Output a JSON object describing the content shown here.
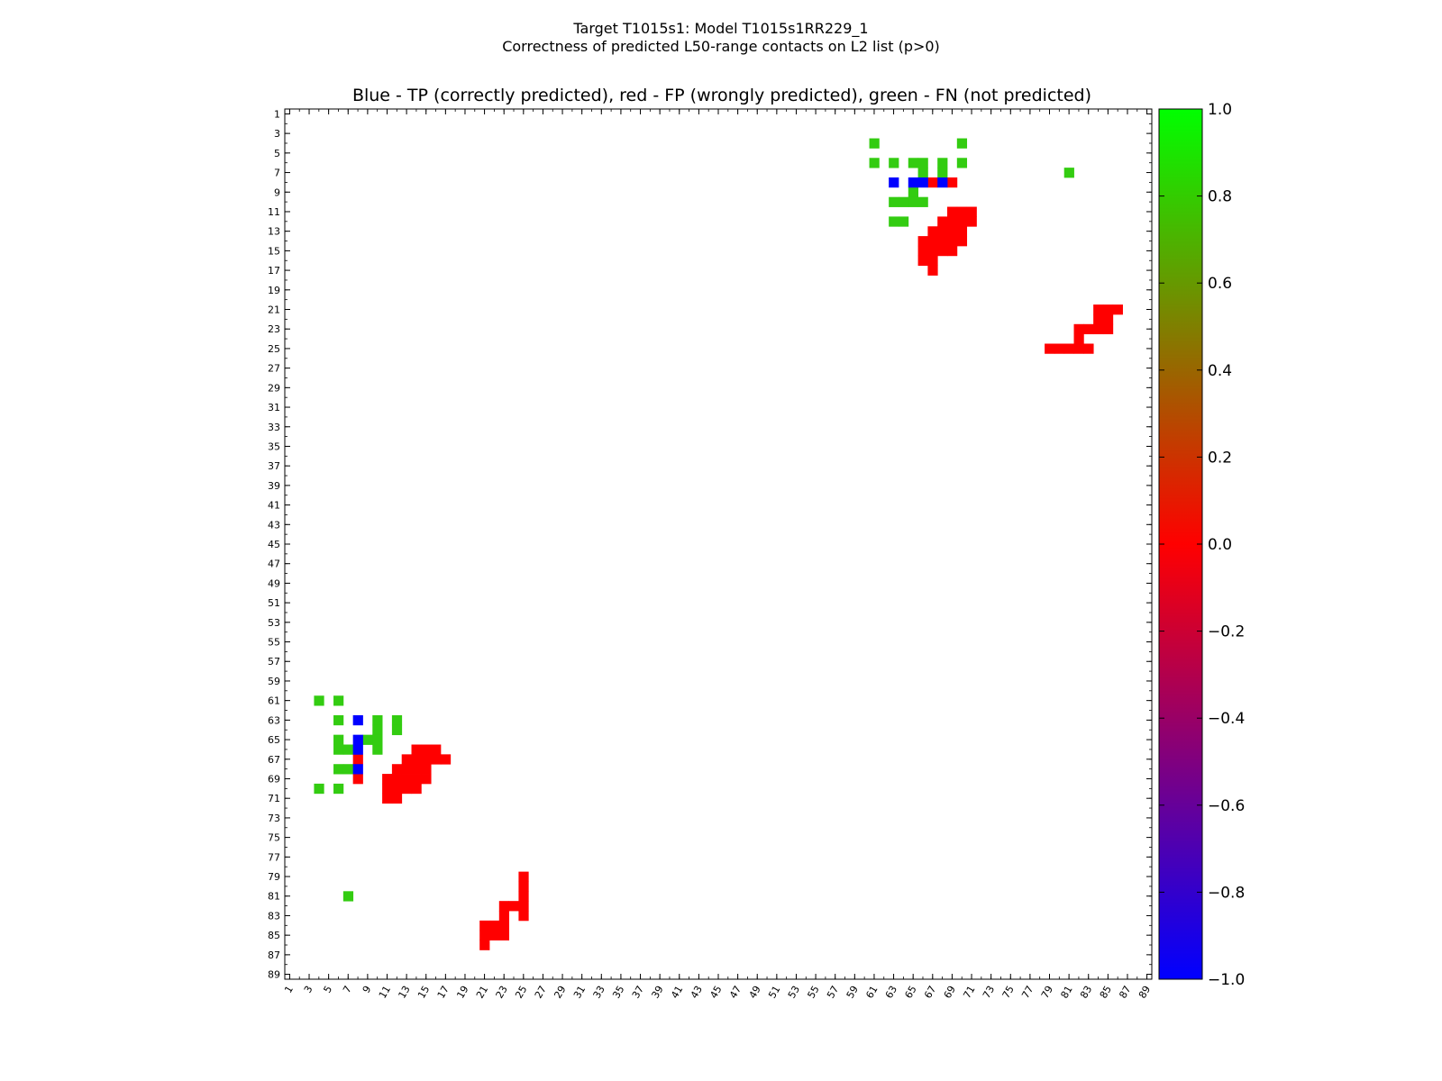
{
  "figure": {
    "suptitle_line1": "Target T1015s1: Model T1015s1RR229_1",
    "suptitle_line2": "Correctness of predicted L50-range contacts on L2 list (p>0)"
  },
  "colors": {
    "tp": "#0000ff",
    "fp": "#ff0000",
    "fn": "#33cc11",
    "colorbar_stops": [
      "#0000ff",
      "#ff0000",
      "#00ff00"
    ]
  },
  "chart_data": {
    "type": "heatmap",
    "title": "Blue - TP (correctly predicted), red - FP (wrongly predicted), green - FN (not predicted)",
    "xlabel": "",
    "ylabel": "",
    "xlim": [
      1,
      89
    ],
    "ylim": [
      1,
      89
    ],
    "x_ticks": [
      "1",
      "3",
      "5",
      "7",
      "9",
      "11",
      "13",
      "15",
      "17",
      "19",
      "21",
      "23",
      "25",
      "27",
      "29",
      "31",
      "33",
      "35",
      "37",
      "39",
      "41",
      "43",
      "45",
      "47",
      "49",
      "51",
      "53",
      "55",
      "57",
      "59",
      "61",
      "63",
      "65",
      "67",
      "69",
      "71",
      "73",
      "75",
      "77",
      "79",
      "81",
      "83",
      "85",
      "87",
      "89"
    ],
    "y_ticks": [
      "1",
      "3",
      "5",
      "7",
      "9",
      "11",
      "13",
      "15",
      "17",
      "19",
      "21",
      "23",
      "25",
      "27",
      "29",
      "31",
      "33",
      "35",
      "37",
      "39",
      "41",
      "43",
      "45",
      "47",
      "49",
      "51",
      "53",
      "55",
      "57",
      "59",
      "61",
      "63",
      "65",
      "67",
      "69",
      "71",
      "73",
      "75",
      "77",
      "79",
      "81",
      "83",
      "85",
      "87",
      "89"
    ],
    "grid": false,
    "colorbar": {
      "min": -1.0,
      "max": 1.0,
      "ticks": [
        "1.0",
        "0.8",
        "0.6",
        "0.4",
        "0.2",
        "0.0",
        "−0.2",
        "−0.4",
        "−0.6",
        "−0.8",
        "−1.0"
      ]
    },
    "cells": {
      "tp": [
        [
          8,
          63
        ],
        [
          8,
          65
        ],
        [
          8,
          66
        ],
        [
          8,
          68
        ],
        [
          63,
          8
        ],
        [
          65,
          8
        ],
        [
          66,
          8
        ],
        [
          68,
          8
        ]
      ],
      "fp": [
        [
          8,
          67
        ],
        [
          8,
          69
        ],
        [
          11,
          69
        ],
        [
          11,
          70
        ],
        [
          11,
          71
        ],
        [
          12,
          68
        ],
        [
          12,
          69
        ],
        [
          12,
          70
        ],
        [
          12,
          71
        ],
        [
          13,
          67
        ],
        [
          13,
          68
        ],
        [
          13,
          69
        ],
        [
          13,
          70
        ],
        [
          14,
          66
        ],
        [
          14,
          67
        ],
        [
          14,
          68
        ],
        [
          14,
          69
        ],
        [
          14,
          70
        ],
        [
          15,
          66
        ],
        [
          15,
          67
        ],
        [
          15,
          68
        ],
        [
          15,
          69
        ],
        [
          16,
          66
        ],
        [
          16,
          67
        ],
        [
          17,
          67
        ],
        [
          21,
          84
        ],
        [
          21,
          85
        ],
        [
          21,
          86
        ],
        [
          22,
          84
        ],
        [
          22,
          85
        ],
        [
          23,
          82
        ],
        [
          23,
          83
        ],
        [
          23,
          84
        ],
        [
          23,
          85
        ],
        [
          24,
          82
        ],
        [
          25,
          79
        ],
        [
          25,
          80
        ],
        [
          25,
          81
        ],
        [
          25,
          82
        ],
        [
          25,
          83
        ],
        [
          67,
          8
        ],
        [
          69,
          8
        ],
        [
          69,
          11
        ],
        [
          70,
          11
        ],
        [
          71,
          11
        ],
        [
          68,
          12
        ],
        [
          69,
          12
        ],
        [
          70,
          12
        ],
        [
          71,
          12
        ],
        [
          67,
          13
        ],
        [
          68,
          13
        ],
        [
          69,
          13
        ],
        [
          70,
          13
        ],
        [
          66,
          14
        ],
        [
          67,
          14
        ],
        [
          68,
          14
        ],
        [
          69,
          14
        ],
        [
          70,
          14
        ],
        [
          66,
          15
        ],
        [
          67,
          15
        ],
        [
          68,
          15
        ],
        [
          69,
          15
        ],
        [
          66,
          16
        ],
        [
          67,
          16
        ],
        [
          67,
          17
        ],
        [
          84,
          21
        ],
        [
          85,
          21
        ],
        [
          86,
          21
        ],
        [
          84,
          22
        ],
        [
          85,
          22
        ],
        [
          82,
          23
        ],
        [
          83,
          23
        ],
        [
          84,
          23
        ],
        [
          85,
          23
        ],
        [
          82,
          24
        ],
        [
          79,
          25
        ],
        [
          80,
          25
        ],
        [
          81,
          25
        ],
        [
          82,
          25
        ],
        [
          83,
          25
        ]
      ],
      "fn": [
        [
          4,
          61
        ],
        [
          4,
          70
        ],
        [
          6,
          61
        ],
        [
          6,
          63
        ],
        [
          6,
          65
        ],
        [
          6,
          66
        ],
        [
          6,
          68
        ],
        [
          6,
          70
        ],
        [
          7,
          66
        ],
        [
          7,
          68
        ],
        [
          7,
          81
        ],
        [
          9,
          65
        ],
        [
          10,
          63
        ],
        [
          10,
          64
        ],
        [
          10,
          65
        ],
        [
          10,
          66
        ],
        [
          12,
          63
        ],
        [
          12,
          64
        ],
        [
          61,
          4
        ],
        [
          70,
          4
        ],
        [
          61,
          6
        ],
        [
          63,
          6
        ],
        [
          65,
          6
        ],
        [
          66,
          6
        ],
        [
          68,
          6
        ],
        [
          70,
          6
        ],
        [
          66,
          7
        ],
        [
          68,
          7
        ],
        [
          81,
          7
        ],
        [
          65,
          9
        ],
        [
          63,
          10
        ],
        [
          64,
          10
        ],
        [
          65,
          10
        ],
        [
          66,
          10
        ],
        [
          63,
          12
        ],
        [
          64,
          12
        ]
      ]
    }
  }
}
